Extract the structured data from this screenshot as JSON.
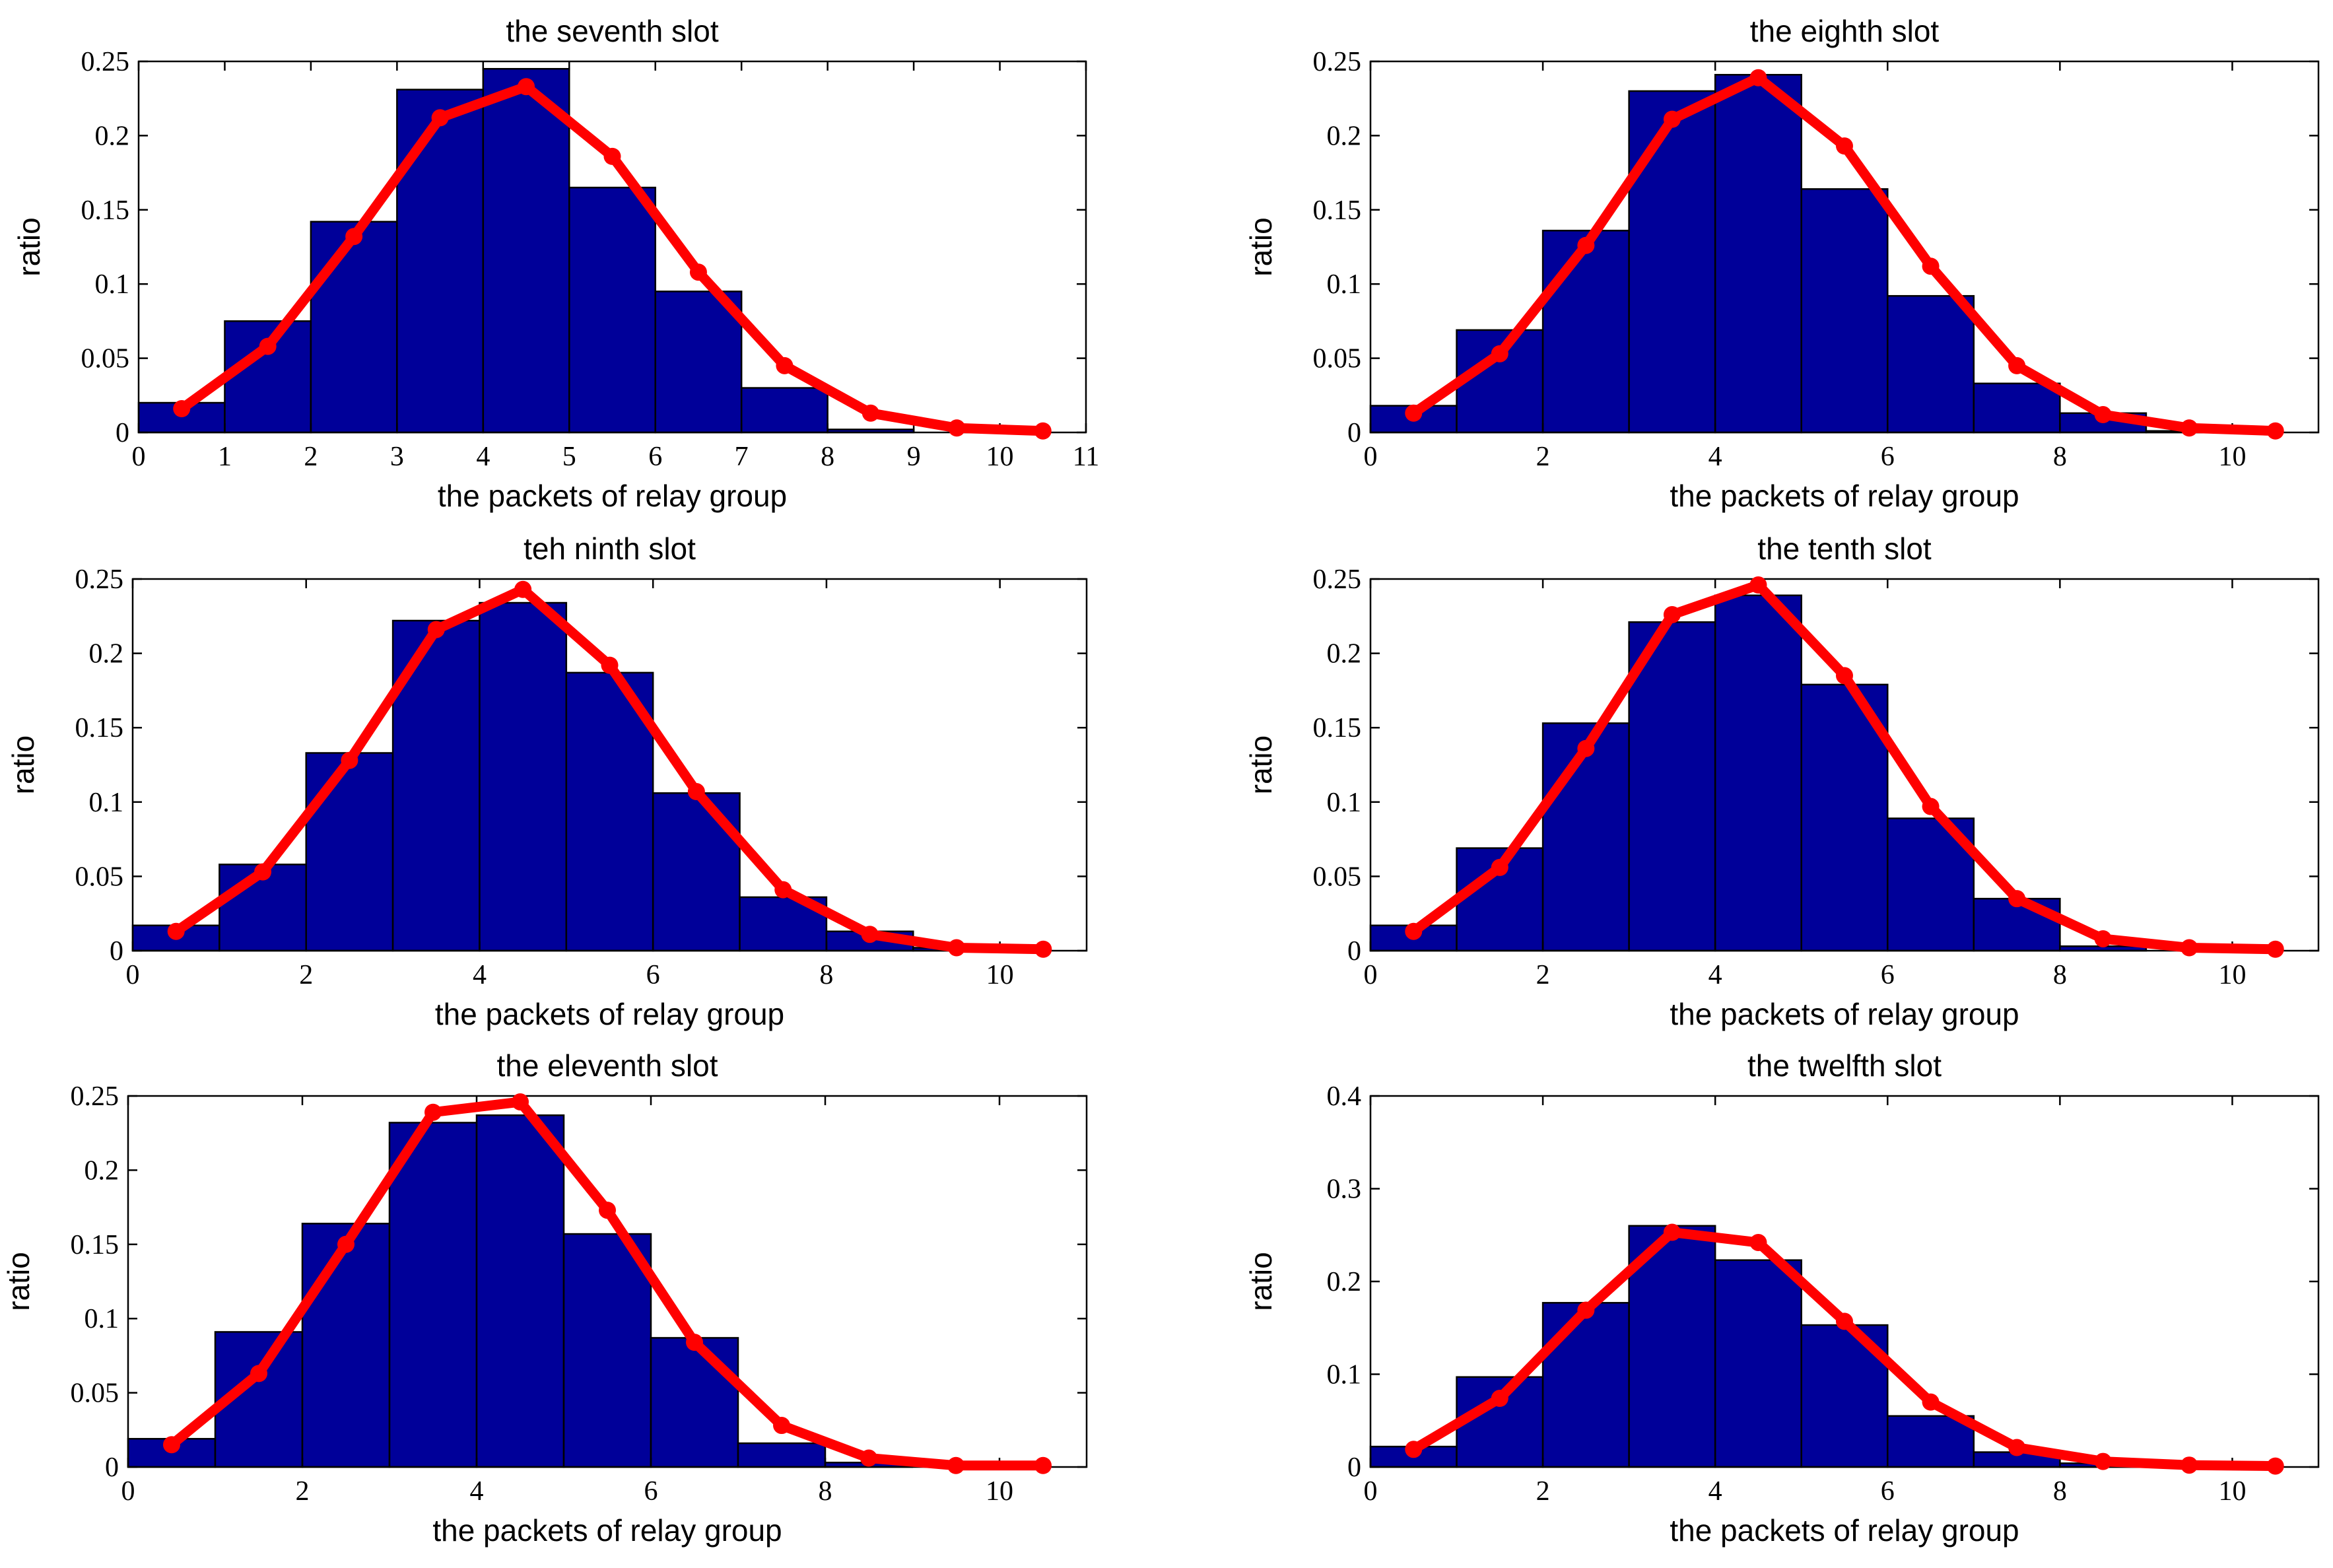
{
  "colors": {
    "bar_fill": "#000099",
    "bar_edge": "#000000",
    "line": "#ff0000",
    "background": "#ffffff",
    "axes": "#000000"
  },
  "chart_data": [
    {
      "type": "bar",
      "overlay": "line",
      "title": "the seventh slot",
      "xlabel": "the packets of relay group",
      "ylabel": "ratio",
      "xlim": [
        0,
        11
      ],
      "ylim": [
        0,
        0.25
      ],
      "xticks": [
        "0",
        "1",
        "2",
        "3",
        "4",
        "5",
        "6",
        "7",
        "8",
        "9",
        "10",
        "11"
      ],
      "yticks": [
        "0",
        "0.05",
        "0.1",
        "0.15",
        "0.2",
        "0.25"
      ],
      "grid": false,
      "bins": [
        [
          0,
          1
        ],
        [
          1,
          2
        ],
        [
          2,
          3
        ],
        [
          3,
          4
        ],
        [
          4,
          5
        ],
        [
          5,
          6
        ],
        [
          6,
          7
        ],
        [
          7,
          8
        ],
        [
          8,
          9
        ],
        [
          9,
          10
        ],
        [
          10,
          11
        ]
      ],
      "bar_values": [
        0.02,
        0.075,
        0.142,
        0.231,
        0.245,
        0.165,
        0.095,
        0.03,
        0.002,
        0.0,
        0.0
      ],
      "line_x": [
        0.5,
        1.5,
        2.5,
        3.5,
        4.5,
        5.5,
        6.5,
        7.5,
        8.5,
        9.5,
        10.5
      ],
      "line_y": [
        0.016,
        0.058,
        0.132,
        0.212,
        0.233,
        0.186,
        0.108,
        0.045,
        0.013,
        0.003,
        0.001
      ]
    },
    {
      "type": "bar",
      "overlay": "line",
      "title": "the eighth slot",
      "xlabel": "the packets of relay group",
      "ylabel": "ratio",
      "xlim": [
        0,
        11
      ],
      "ylim": [
        0,
        0.25
      ],
      "xticks": [
        "0",
        "2",
        "4",
        "6",
        "8",
        "10"
      ],
      "yticks": [
        "0",
        "0.05",
        "0.1",
        "0.15",
        "0.2",
        "0.25"
      ],
      "grid": false,
      "bins": [
        [
          0,
          1
        ],
        [
          1,
          2
        ],
        [
          2,
          3
        ],
        [
          3,
          4
        ],
        [
          4,
          5
        ],
        [
          5,
          6
        ],
        [
          6,
          7
        ],
        [
          7,
          8
        ],
        [
          8,
          9
        ],
        [
          9,
          10
        ],
        [
          10,
          11
        ]
      ],
      "bar_values": [
        0.018,
        0.069,
        0.136,
        0.23,
        0.241,
        0.164,
        0.092,
        0.033,
        0.013,
        0.001,
        0.0
      ],
      "line_x": [
        0.5,
        1.5,
        2.5,
        3.5,
        4.5,
        5.5,
        6.5,
        7.5,
        8.5,
        9.5,
        10.5
      ],
      "line_y": [
        0.013,
        0.053,
        0.126,
        0.211,
        0.239,
        0.193,
        0.112,
        0.045,
        0.012,
        0.003,
        0.001
      ]
    },
    {
      "type": "bar",
      "overlay": "line",
      "title": "teh ninth slot",
      "xlabel": "the packets of relay group",
      "ylabel": "ratio",
      "xlim": [
        0,
        11
      ],
      "ylim": [
        0,
        0.25
      ],
      "xticks": [
        "0",
        "2",
        "4",
        "6",
        "8",
        "10"
      ],
      "yticks": [
        "0",
        "0.05",
        "0.1",
        "0.15",
        "0.2",
        "0.25"
      ],
      "grid": false,
      "bins": [
        [
          0,
          1
        ],
        [
          1,
          2
        ],
        [
          2,
          3
        ],
        [
          3,
          4
        ],
        [
          4,
          5
        ],
        [
          5,
          6
        ],
        [
          6,
          7
        ],
        [
          7,
          8
        ],
        [
          8,
          9
        ],
        [
          9,
          10
        ],
        [
          10,
          11
        ]
      ],
      "bar_values": [
        0.017,
        0.058,
        0.133,
        0.222,
        0.234,
        0.187,
        0.106,
        0.036,
        0.013,
        0.002,
        0.0
      ],
      "line_x": [
        0.5,
        1.5,
        2.5,
        3.5,
        4.5,
        5.5,
        6.5,
        7.5,
        8.5,
        9.5,
        10.5
      ],
      "line_y": [
        0.013,
        0.053,
        0.128,
        0.216,
        0.243,
        0.192,
        0.107,
        0.041,
        0.011,
        0.002,
        0.001
      ]
    },
    {
      "type": "bar",
      "overlay": "line",
      "title": "the tenth slot",
      "xlabel": "the packets of relay group",
      "ylabel": "ratio",
      "xlim": [
        0,
        11
      ],
      "ylim": [
        0,
        0.25
      ],
      "xticks": [
        "0",
        "2",
        "4",
        "6",
        "8",
        "10"
      ],
      "yticks": [
        "0",
        "0.05",
        "0.1",
        "0.15",
        "0.2",
        "0.25"
      ],
      "grid": false,
      "bins": [
        [
          0,
          1
        ],
        [
          1,
          2
        ],
        [
          2,
          3
        ],
        [
          3,
          4
        ],
        [
          4,
          5
        ],
        [
          5,
          6
        ],
        [
          6,
          7
        ],
        [
          7,
          8
        ],
        [
          8,
          9
        ],
        [
          9,
          10
        ],
        [
          10,
          11
        ]
      ],
      "bar_values": [
        0.017,
        0.069,
        0.153,
        0.221,
        0.239,
        0.179,
        0.089,
        0.035,
        0.003,
        0.0,
        0.0
      ],
      "line_x": [
        0.5,
        1.5,
        2.5,
        3.5,
        4.5,
        5.5,
        6.5,
        7.5,
        8.5,
        9.5,
        10.5
      ],
      "line_y": [
        0.013,
        0.056,
        0.136,
        0.226,
        0.246,
        0.185,
        0.097,
        0.035,
        0.008,
        0.002,
        0.001
      ]
    },
    {
      "type": "bar",
      "overlay": "line",
      "title": "the eleventh slot",
      "xlabel": "the packets of relay group",
      "ylabel": "ratio",
      "xlim": [
        0,
        11
      ],
      "ylim": [
        0,
        0.25
      ],
      "xticks": [
        "0",
        "2",
        "4",
        "6",
        "8",
        "10"
      ],
      "yticks": [
        "0",
        "0.05",
        "0.1",
        "0.15",
        "0.2",
        "0.25"
      ],
      "grid": false,
      "bins": [
        [
          0,
          1
        ],
        [
          1,
          2
        ],
        [
          2,
          3
        ],
        [
          3,
          4
        ],
        [
          4,
          5
        ],
        [
          5,
          6
        ],
        [
          6,
          7
        ],
        [
          7,
          8
        ],
        [
          8,
          9
        ],
        [
          9,
          10
        ],
        [
          10,
          11
        ]
      ],
      "bar_values": [
        0.019,
        0.091,
        0.164,
        0.232,
        0.237,
        0.157,
        0.087,
        0.016,
        0.003,
        0.0,
        0.0
      ],
      "line_x": [
        0.5,
        1.5,
        2.5,
        3.5,
        4.5,
        5.5,
        6.5,
        7.5,
        8.5,
        9.5,
        10.5
      ],
      "line_y": [
        0.015,
        0.063,
        0.15,
        0.239,
        0.246,
        0.173,
        0.084,
        0.028,
        0.006,
        0.001,
        0.001
      ]
    },
    {
      "type": "bar",
      "overlay": "line",
      "title": "the twelfth slot",
      "xlabel": "the packets of relay group",
      "ylabel": "ratio",
      "xlim": [
        0,
        11
      ],
      "ylim": [
        0,
        0.4
      ],
      "xticks": [
        "0",
        "2",
        "4",
        "6",
        "8",
        "10"
      ],
      "yticks": [
        "0",
        "0.1",
        "0.2",
        "0.3",
        "0.4"
      ],
      "grid": false,
      "bins": [
        [
          0,
          1
        ],
        [
          1,
          2
        ],
        [
          2,
          3
        ],
        [
          3,
          4
        ],
        [
          4,
          5
        ],
        [
          5,
          6
        ],
        [
          6,
          7
        ],
        [
          7,
          8
        ],
        [
          8,
          9
        ],
        [
          9,
          10
        ],
        [
          10,
          11
        ]
      ],
      "bar_values": [
        0.022,
        0.097,
        0.177,
        0.26,
        0.223,
        0.153,
        0.055,
        0.016,
        0.004,
        0.0,
        0.0
      ],
      "line_x": [
        0.5,
        1.5,
        2.5,
        3.5,
        4.5,
        5.5,
        6.5,
        7.5,
        8.5,
        9.5,
        10.5
      ],
      "line_y": [
        0.019,
        0.074,
        0.169,
        0.253,
        0.242,
        0.157,
        0.07,
        0.021,
        0.006,
        0.002,
        0.001
      ]
    }
  ]
}
